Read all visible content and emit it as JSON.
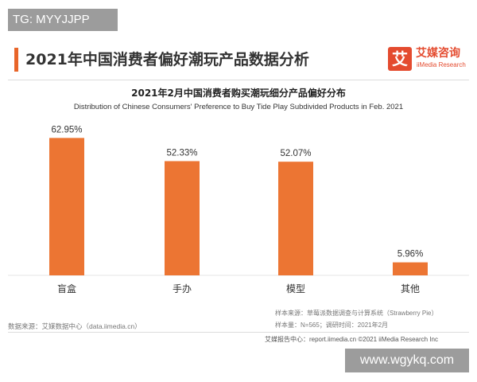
{
  "tg_tag": "TG: MYYJJPP",
  "header": {
    "title": "2021年中国消费者偏好潮玩产品数据分析"
  },
  "logo": {
    "mark": "艾",
    "name_cn": "艾媒咨询",
    "name_en": "iiMedia Research"
  },
  "footer": {
    "source": "数据来源：艾媒数据中心（data.iimedia.cn）",
    "sample_source": "样本来源：草莓派数据调查与计算系统（Strawberry Pie）",
    "sample_info": "样本量：N=565；调研时间：2021年2月",
    "report": "艾媒报告中心：report.iimedia.cn ©2021 iiMedia Research Inc"
  },
  "watermark": "www.wgykq.com",
  "colors": {
    "bar": "#ec7533",
    "accent": "#e8652a",
    "logo": "#e44b2f"
  },
  "chart_data": {
    "type": "bar",
    "title": "2021年2月中国消费者购买潮玩细分产品偏好分布",
    "subtitle": "Distribution of Chinese Consumers' Preference to Buy Tide Play Subdivided Products in Feb. 2021",
    "categories": [
      "盲盒",
      "手办",
      "模型",
      "其他"
    ],
    "values": [
      62.95,
      52.33,
      52.07,
      5.96
    ],
    "value_labels": [
      "62.95%",
      "52.33%",
      "52.07%",
      "5.96%"
    ],
    "unit": "%",
    "ylim": [
      0,
      70
    ],
    "grid": false,
    "legend": "none"
  }
}
